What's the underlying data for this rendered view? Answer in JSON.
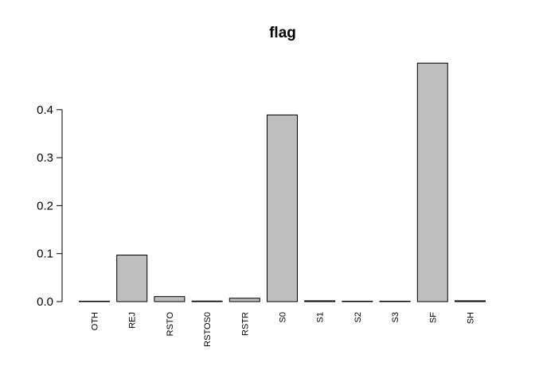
{
  "chart_data": {
    "type": "bar",
    "title": "flag",
    "xlabel": "",
    "ylabel": "",
    "categories": [
      "OTH",
      "REJ",
      "RSTO",
      "RSTOS0",
      "RSTR",
      "S0",
      "S1",
      "S2",
      "S3",
      "SF",
      "SH"
    ],
    "values": [
      0.0002,
      0.097,
      0.0105,
      0.0012,
      0.0071,
      0.389,
      0.0018,
      0.0006,
      0.0003,
      0.497,
      0.0018
    ],
    "yticks": [
      "0.0",
      "0.1",
      "0.2",
      "0.3",
      "0.4"
    ],
    "ylim": [
      0,
      0.5
    ],
    "grid": false,
    "colors": {
      "bar_fill": "#bebebe",
      "bar_stroke": "#000000"
    }
  }
}
